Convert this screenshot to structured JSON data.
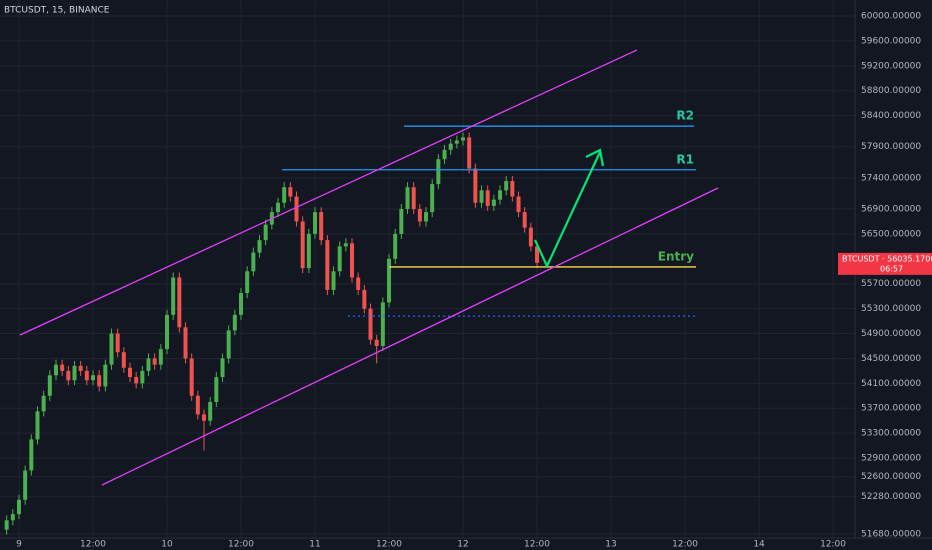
{
  "chart_data": {
    "type": "candlestick",
    "title": "BTCUSDT, 15, BINANCE",
    "up_color": "#4caf50",
    "down_color": "#ef5350",
    "x": [
      -2,
      -1,
      0,
      1,
      2,
      3,
      4,
      5,
      6,
      7,
      8,
      9,
      10,
      11,
      12,
      13,
      14,
      15,
      16,
      17,
      18,
      19,
      20,
      21,
      22,
      23,
      24,
      25,
      26,
      27,
      28,
      29,
      30,
      31,
      32,
      33,
      34,
      35,
      36,
      37,
      38,
      39,
      40,
      41,
      42,
      43,
      44,
      45,
      46,
      47,
      48,
      49,
      50,
      51,
      52,
      53,
      54,
      55,
      56,
      57,
      58,
      59,
      60,
      61,
      62,
      63,
      64,
      65,
      66,
      67,
      68,
      69,
      70,
      71,
      72,
      73,
      74,
      75,
      76,
      77,
      78,
      79,
      80,
      81,
      82,
      83,
      84
    ],
    "open": [
      51750,
      51900,
      52000,
      52230,
      52700,
      53200,
      53650,
      53900,
      54230,
      54400,
      54300,
      54150,
      54380,
      54300,
      54150,
      54230,
      54050,
      54400,
      54900,
      54600,
      54350,
      54200,
      54100,
      54300,
      54500,
      54400,
      54650,
      55200,
      55800,
      55000,
      54500,
      53900,
      53600,
      53500,
      53800,
      54200,
      54500,
      54950,
      55200,
      55550,
      55900,
      56200,
      56400,
      56650,
      56850,
      57000,
      57250,
      57100,
      56700,
      55950,
      56500,
      56850,
      56400,
      55600,
      55900,
      56300,
      56350,
      55800,
      55600,
      55300,
      54800,
      54700,
      55400,
      56100,
      56500,
      56900,
      57250,
      56900,
      56700,
      56850,
      57300,
      57700,
      57850,
      57950,
      58000,
      58050,
      57550,
      57000,
      57200,
      56950,
      57050,
      57200,
      57350,
      57100,
      56850,
      56600,
      56300
    ],
    "high": [
      51980,
      52080,
      52310,
      52780,
      53280,
      53730,
      53980,
      54310,
      54480,
      54480,
      54380,
      54460,
      54460,
      54380,
      54310,
      54310,
      54480,
      54980,
      54980,
      54680,
      54430,
      54280,
      54380,
      54580,
      54580,
      54730,
      55280,
      55880,
      55880,
      55080,
      54580,
      53980,
      53680,
      53880,
      54280,
      54580,
      55030,
      55280,
      55630,
      55980,
      56280,
      56480,
      56730,
      56930,
      57080,
      57330,
      57330,
      57180,
      56780,
      56580,
      56930,
      56930,
      56480,
      55980,
      56380,
      56430,
      56430,
      55880,
      55680,
      55380,
      54880,
      55480,
      56180,
      56580,
      56980,
      57330,
      57330,
      56980,
      56930,
      57380,
      57780,
      57930,
      58030,
      58080,
      58130,
      58130,
      57630,
      57280,
      57280,
      57130,
      57280,
      57430,
      57430,
      57180,
      56930,
      56680,
      56380
    ],
    "low": [
      51670,
      51820,
      51920,
      52150,
      52620,
      53120,
      53570,
      53820,
      54150,
      54220,
      54070,
      54070,
      54220,
      54070,
      54070,
      53970,
      53970,
      54320,
      54520,
      54270,
      54120,
      54020,
      54020,
      54220,
      54320,
      54320,
      54570,
      55120,
      54920,
      54420,
      53820,
      53520,
      53020,
      53420,
      53720,
      54120,
      54420,
      54870,
      55120,
      55470,
      55820,
      56120,
      56320,
      56570,
      56770,
      56920,
      57020,
      56620,
      55870,
      55870,
      56420,
      56320,
      55520,
      55520,
      55820,
      56220,
      55720,
      55520,
      55220,
      54720,
      54420,
      54620,
      55320,
      56020,
      56420,
      56820,
      56820,
      56620,
      56620,
      56770,
      57220,
      57620,
      57770,
      57870,
      57920,
      57470,
      56920,
      56920,
      56870,
      56870,
      56970,
      57120,
      57020,
      56770,
      56520,
      56220,
      55950
    ],
    "close": [
      51900,
      52000,
      52230,
      52700,
      53200,
      53650,
      53900,
      54230,
      54400,
      54300,
      54150,
      54380,
      54300,
      54150,
      54230,
      54050,
      54400,
      54900,
      54600,
      54350,
      54200,
      54100,
      54300,
      54500,
      54400,
      54650,
      55200,
      55800,
      55000,
      54500,
      53900,
      53600,
      53500,
      53800,
      54200,
      54500,
      54950,
      55200,
      55550,
      55900,
      56200,
      56400,
      56650,
      56850,
      57000,
      57250,
      57100,
      56700,
      55950,
      56500,
      56850,
      56400,
      55600,
      55900,
      56300,
      56350,
      55800,
      55600,
      55300,
      54800,
      54700,
      55400,
      56100,
      56500,
      56900,
      57250,
      56900,
      56700,
      56850,
      57300,
      57700,
      57850,
      57950,
      58000,
      58050,
      57550,
      57000,
      57200,
      56950,
      57050,
      57200,
      57350,
      57100,
      56850,
      56600,
      56300,
      56035.17
    ],
    "xlim": [
      -3.08,
      135.56
    ],
    "ylim": [
      51616,
      60257
    ],
    "xticks": [
      {
        "value": 0,
        "label": "9"
      },
      {
        "value": 12,
        "label": "12:00"
      },
      {
        "value": 24,
        "label": "10"
      },
      {
        "value": 36,
        "label": "12:00"
      },
      {
        "value": 48,
        "label": "11"
      },
      {
        "value": 60,
        "label": "12:00"
      },
      {
        "value": 72,
        "label": "12"
      },
      {
        "value": 84,
        "label": "12:00"
      },
      {
        "value": 96,
        "label": "13"
      },
      {
        "value": 108,
        "label": "12:00"
      },
      {
        "value": 120,
        "label": "14"
      },
      {
        "value": 132,
        "label": "12:00"
      }
    ],
    "yticks": [
      {
        "value": 60000,
        "label": "60000.00000"
      },
      {
        "value": 59600,
        "label": "59600.00000"
      },
      {
        "value": 59200,
        "label": "59200.00000"
      },
      {
        "value": 58800,
        "label": "58800.00000"
      },
      {
        "value": 58400,
        "label": "58400.00000"
      },
      {
        "value": 57900,
        "label": "57900.00000"
      },
      {
        "value": 57400,
        "label": "57400.00000"
      },
      {
        "value": 56900,
        "label": "56900.00000"
      },
      {
        "value": 56500,
        "label": "56500.00000"
      },
      {
        "value": 55700,
        "label": "55700.00000"
      },
      {
        "value": 55300,
        "label": "55300.00000"
      },
      {
        "value": 54900,
        "label": "54900.00000"
      },
      {
        "value": 54500,
        "label": "54500.00000"
      },
      {
        "value": 54100,
        "label": "54100.00000"
      },
      {
        "value": 53700,
        "label": "53700.00000"
      },
      {
        "value": 53300,
        "label": "53300.00000"
      },
      {
        "value": 52900,
        "label": "52900.00000"
      },
      {
        "value": 52600,
        "label": "52600.00000"
      },
      {
        "value": 52280,
        "label": "52280.00000"
      },
      {
        "value": 51680,
        "label": "51680.00000"
      }
    ],
    "grid": true,
    "levels": [
      {
        "label": "R2",
        "value": 58230,
        "color": "#2196f3",
        "label_color": "#26c6a0"
      },
      {
        "label": "R1",
        "value": 57530,
        "color": "#2196f3",
        "label_color": "#26c6a0"
      },
      {
        "label": "Entry",
        "value": 55970,
        "color": "#ffd54f",
        "label_color": "#4caf50"
      },
      {
        "value": 55180,
        "color": "#2962ff",
        "dotted": true
      }
    ],
    "last_price": 56035.17,
    "last_price_label": "BTCUSDT · 56035.17000",
    "countdown": "06:57",
    "last_price_color": "#f23645"
  }
}
